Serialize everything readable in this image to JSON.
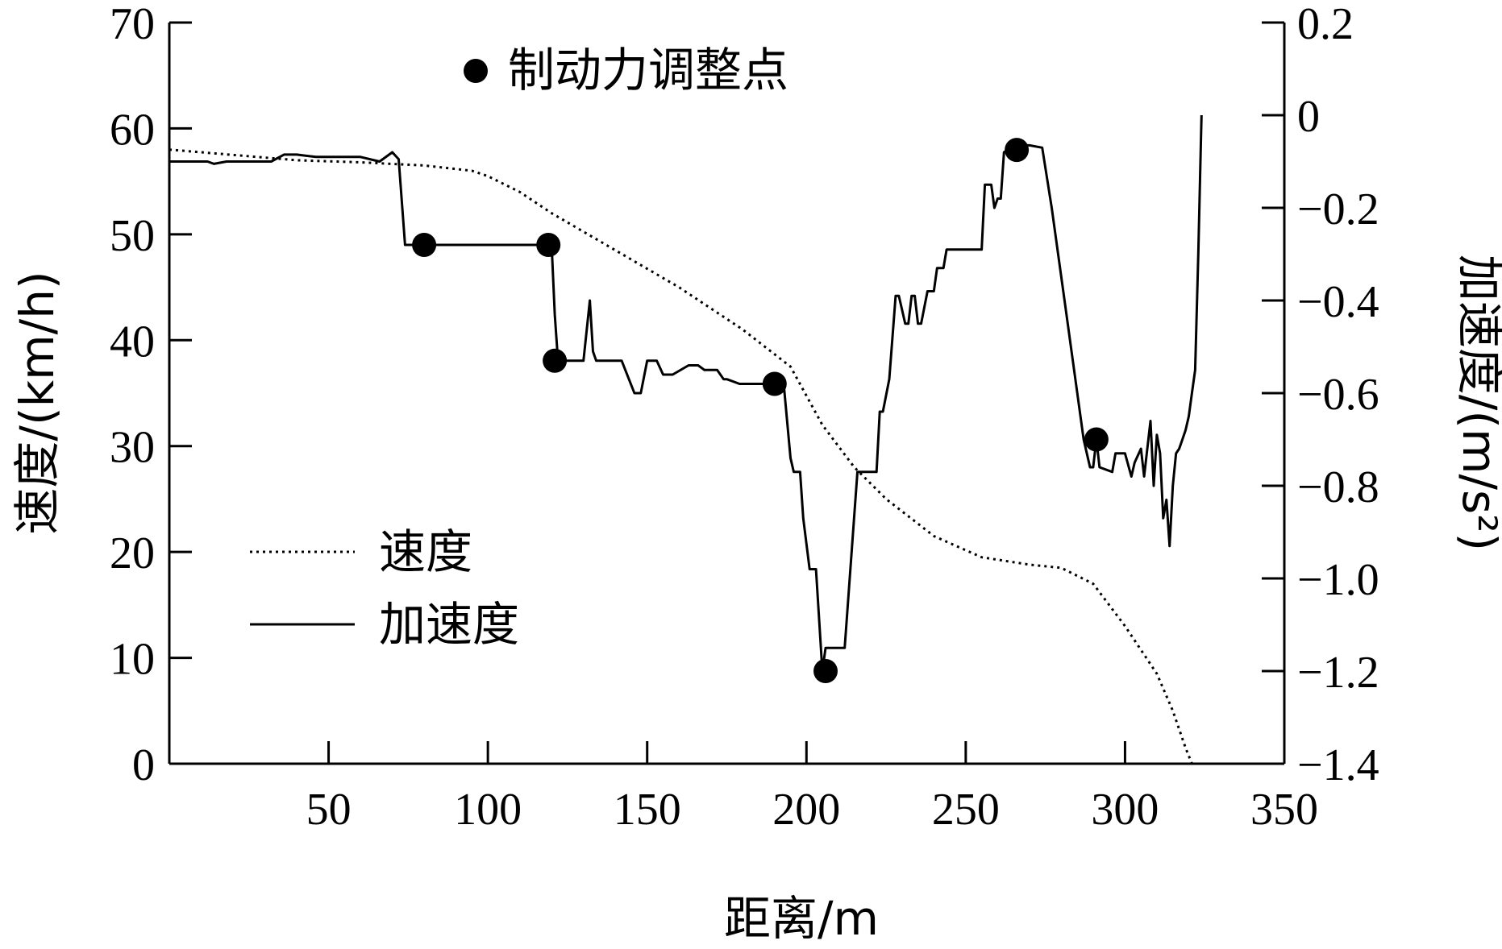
{
  "chart_data": {
    "type": "line",
    "xlabel": "距离/m",
    "ylabel": "速度/(km/h)",
    "y2label": "加速度/(m/s²)",
    "xlim": [
      0,
      350
    ],
    "ylim": [
      0,
      70
    ],
    "y2lim": [
      -1.4,
      0.2
    ],
    "x_ticks": [
      50,
      100,
      150,
      200,
      250,
      300,
      350
    ],
    "y_ticks": [
      0,
      10,
      20,
      30,
      40,
      50,
      60,
      70
    ],
    "y2_ticks": [
      -1.4,
      -1.2,
      -1.0,
      -0.8,
      -0.6,
      -0.4,
      -0.2,
      0,
      0.2
    ],
    "y2_tick_labels": [
      "−1.4",
      "−1.2",
      "−1.0",
      "−0.8",
      "−0.6",
      "−0.4",
      "−0.2",
      "0",
      "0.2"
    ],
    "marker_legend": "制动力调整点",
    "series": [
      {
        "name": "速度",
        "axis": "left",
        "style": "dotted",
        "x": [
          0,
          20,
          40,
          60,
          80,
          95,
          100,
          110,
          120,
          140,
          160,
          180,
          195,
          205,
          215,
          225,
          240,
          255,
          270,
          280,
          290,
          300,
          310,
          315,
          319,
          321
        ],
        "y": [
          58,
          57.5,
          57,
          56.8,
          56.5,
          56,
          55.5,
          54,
          52,
          48.5,
          45,
          41,
          37.5,
          32,
          28,
          25,
          21.5,
          19.5,
          18.8,
          18.5,
          17,
          13,
          8.5,
          5,
          1.5,
          0
        ]
      },
      {
        "name": "加速度",
        "axis": "right",
        "style": "solid",
        "x": [
          0,
          12,
          14,
          18,
          32,
          36,
          40,
          46,
          50,
          60,
          66,
          70,
          72,
          74,
          80,
          120,
          121,
          122,
          128,
          130,
          132,
          133,
          134,
          142,
          146,
          148,
          150,
          151,
          153,
          155,
          158,
          163,
          166,
          168,
          172,
          174,
          175,
          179,
          184,
          188,
          193,
          195,
          196,
          198,
          199,
          201,
          203,
          205,
          206,
          208,
          210,
          212,
          216,
          217,
          222,
          223,
          224,
          226,
          228,
          229,
          231,
          232,
          233,
          234,
          235,
          236,
          238,
          240,
          241,
          243,
          244,
          255,
          256,
          258,
          259,
          260,
          261,
          262,
          266,
          270,
          274,
          277,
          281,
          287,
          289,
          290,
          291,
          292,
          296,
          297,
          300,
          302,
          303,
          305,
          306,
          308,
          309,
          310,
          311,
          312,
          313,
          314,
          315,
          316,
          317,
          318,
          319,
          320,
          321,
          322,
          323,
          324
        ],
        "y": [
          -0.1,
          -0.1,
          -0.105,
          -0.1,
          -0.1,
          -0.085,
          -0.085,
          -0.09,
          -0.09,
          -0.09,
          -0.1,
          -0.08,
          -0.095,
          -0.28,
          -0.28,
          -0.28,
          -0.43,
          -0.53,
          -0.53,
          -0.53,
          -0.4,
          -0.51,
          -0.53,
          -0.53,
          -0.6,
          -0.6,
          -0.53,
          -0.53,
          -0.53,
          -0.56,
          -0.56,
          -0.54,
          -0.54,
          -0.55,
          -0.55,
          -0.57,
          -0.57,
          -0.58,
          -0.58,
          -0.58,
          -0.59,
          -0.74,
          -0.77,
          -0.77,
          -0.87,
          -0.98,
          -0.98,
          -1.2,
          -1.15,
          -1.15,
          -1.15,
          -1.15,
          -0.77,
          -0.77,
          -0.77,
          -0.64,
          -0.64,
          -0.57,
          -0.39,
          -0.39,
          -0.45,
          -0.45,
          -0.39,
          -0.39,
          -0.45,
          -0.45,
          -0.38,
          -0.38,
          -0.33,
          -0.33,
          -0.29,
          -0.29,
          -0.15,
          -0.15,
          -0.2,
          -0.18,
          -0.18,
          -0.08,
          -0.065,
          -0.065,
          -0.07,
          -0.2,
          -0.4,
          -0.7,
          -0.76,
          -0.76,
          -0.7,
          -0.76,
          -0.77,
          -0.73,
          -0.73,
          -0.78,
          -0.75,
          -0.72,
          -0.78,
          -0.66,
          -0.8,
          -0.69,
          -0.73,
          -0.87,
          -0.83,
          -0.93,
          -0.8,
          -0.73,
          -0.72,
          -0.7,
          -0.68,
          -0.65,
          -0.6,
          -0.55,
          -0.3,
          0.0
        ]
      }
    ],
    "markers": {
      "axis": "right",
      "x": [
        80,
        119,
        121,
        190,
        206,
        266,
        291
      ],
      "y": [
        -0.28,
        -0.28,
        -0.53,
        -0.58,
        -1.2,
        -0.075,
        -0.7
      ]
    },
    "legend": {
      "position": "bottom-left",
      "entries": [
        {
          "label": "速度",
          "style": "dotted"
        },
        {
          "label": "加速度",
          "style": "solid"
        }
      ]
    }
  }
}
